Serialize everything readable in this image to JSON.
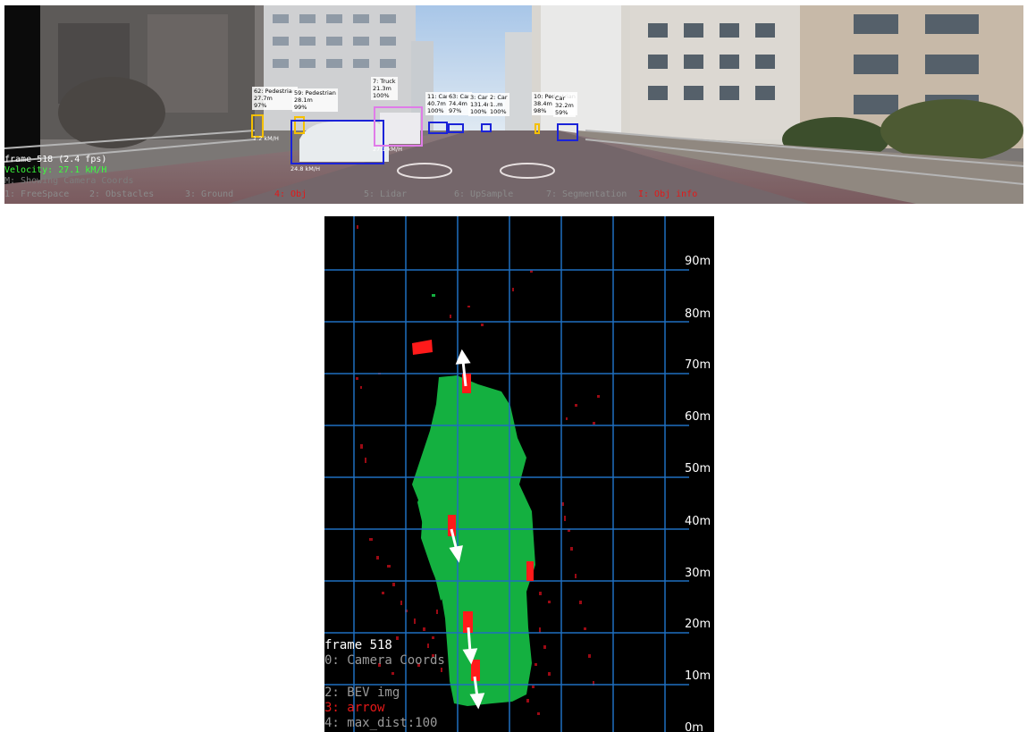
{
  "camera_view": {
    "status": {
      "frame": "frame 518 (2.4 fps)",
      "velocity": "Velocity: 27.1 kM/H",
      "showing": "M: Showing Camera Coords"
    },
    "menu": [
      {
        "label": "1: FreeSpace",
        "active": false
      },
      {
        "label": "2: Obstacles",
        "active": false
      },
      {
        "label": "3: Ground",
        "active": false
      },
      {
        "label": "4: Obj",
        "active": true
      },
      {
        "label": "5: Lidar",
        "active": false
      },
      {
        "label": "6: UpSample",
        "active": false
      },
      {
        "label": "7: Segmentation",
        "active": false
      },
      {
        "label": "I: Obj info",
        "active": true
      }
    ],
    "detections": [
      {
        "label": "62: Pedestrian\n27.7m\n97%",
        "color": "#f5c000"
      },
      {
        "label": "59: Pedestrian\n28.1m\n99%",
        "color": "#f5c000"
      },
      {
        "label": "7: Truck\n21.3m\n100%",
        "color": "#e07ce8"
      },
      {
        "label": "11: Car\n40.7m\n100%",
        "color": "#1b23d8"
      },
      {
        "label": "63: Car\n74.4m\n97%",
        "color": "#1b23d8"
      },
      {
        "label": "3: Car\n131.4m\n100%",
        "color": "#1b23d8"
      },
      {
        "label": "2: Car\n1..m\n100%",
        "color": "#1b23d8"
      },
      {
        "label": "10: Pedestrian\n38.4m\n98%",
        "color": "#f5c000"
      },
      {
        "label": "Car\n32.2m\n59%",
        "color": "#1b23d8"
      }
    ],
    "speed_tags": [
      "1.2 kM/H",
      "27.1 kM/H",
      "24.8 kM/H"
    ]
  },
  "bev_view": {
    "distance_labels": [
      "90m",
      "80m",
      "70m",
      "60m",
      "50m",
      "40m",
      "30m",
      "20m",
      "10m",
      "0m"
    ],
    "overlay": {
      "frame": "frame 518",
      "coords": "0: Camera Coords",
      "bev_img": "2: BEV img",
      "arrow": "3: arrow",
      "max_dist": "4: max_dist:100"
    },
    "colors": {
      "grid": "#1f6fc0",
      "freespace": "#14b040",
      "objects": "#ff1a1a",
      "lidar": "#9c0a14",
      "arrows": "#ffffff"
    }
  }
}
